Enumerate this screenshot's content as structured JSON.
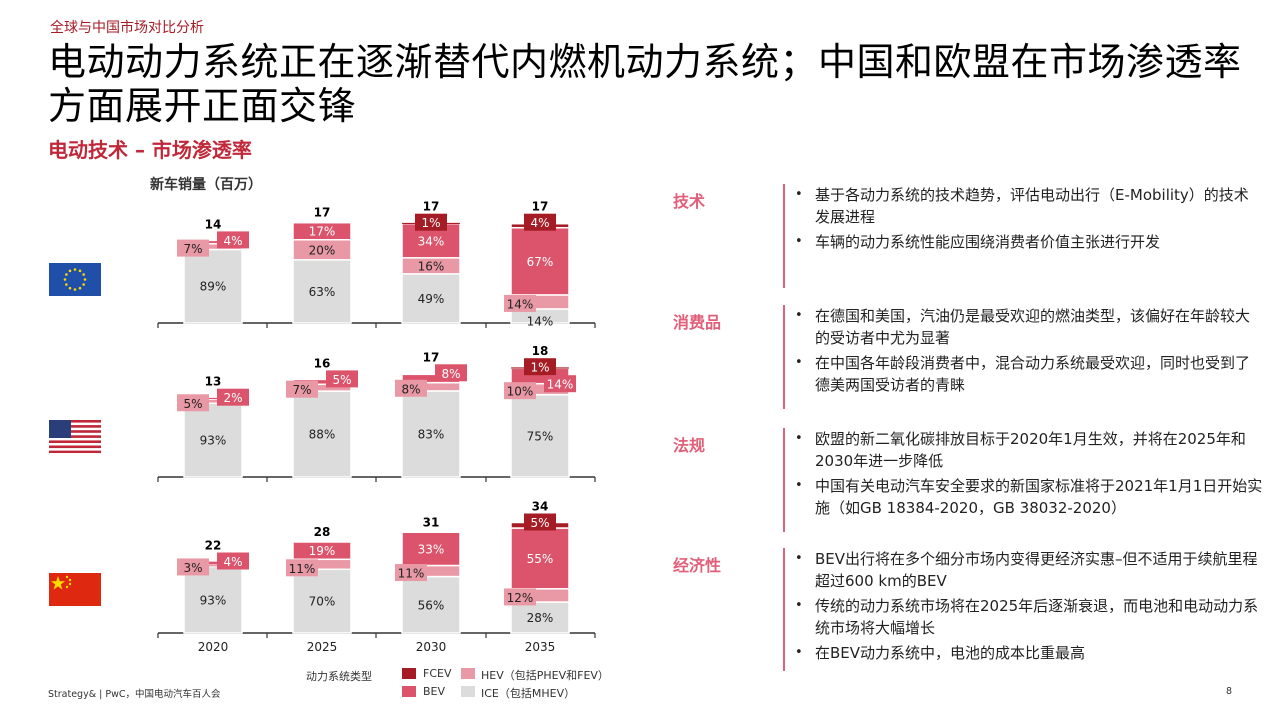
{
  "header": {
    "section": "全球与中国市场对比分析",
    "title": "电动动力系统正在逐渐替代内燃机动力系统；中国和欧盟在市场渗透率方面展开正面交锋",
    "subtitle": "电动技术 – 市场渗透率"
  },
  "chart_data": {
    "type": "stacked-bar",
    "title": "新车销量（百万）",
    "categories": [
      "2020",
      "2025",
      "2030",
      "2035"
    ],
    "series_names": [
      "ICE（包括MHEV）",
      "HEV（包括PHEV和FEV）",
      "BEV",
      "FCEV"
    ],
    "legend_title": "动力系统类型",
    "colors": {
      "FCEV": "#a51c24",
      "BEV": "#dc546c",
      "HEV": "#e899a5",
      "ICE": "#dcdcdc"
    },
    "panels": [
      {
        "region": "EU",
        "totals": [
          14,
          17,
          17,
          17
        ],
        "ICE": [
          89,
          63,
          49,
          14
        ],
        "HEV": [
          7,
          20,
          16,
          14
        ],
        "BEV": [
          4,
          17,
          34,
          67
        ],
        "FCEV": [
          0,
          0,
          1,
          4
        ]
      },
      {
        "region": "US",
        "totals": [
          13,
          16,
          17,
          18
        ],
        "ICE": [
          93,
          88,
          83,
          75
        ],
        "HEV": [
          5,
          7,
          8,
          10
        ],
        "BEV": [
          2,
          5,
          8,
          14
        ],
        "FCEV": [
          0,
          0,
          0,
          1
        ]
      },
      {
        "region": "China",
        "totals": [
          22,
          28,
          31,
          34
        ],
        "ICE": [
          93,
          70,
          56,
          28
        ],
        "HEV": [
          3,
          11,
          11,
          12
        ],
        "BEV": [
          4,
          19,
          33,
          55
        ],
        "FCEV": [
          0,
          0,
          0,
          5
        ]
      }
    ],
    "legend": {
      "FCEV": "FCEV",
      "HEV": "HEV（包括PHEV和FEV）",
      "BEV": "BEV",
      "ICE": "ICE（包括MHEV）"
    },
    "legend_placement": "bottom"
  },
  "right": [
    {
      "label": "技术",
      "items": [
        "基于各动力系统的技术趋势，评估电动出行（E-Mobility）的技术发展进程",
        "车辆的动力系统性能应围绕消费者价值主张进行开发"
      ]
    },
    {
      "label": "消费品",
      "items": [
        "在德国和美国，汽油仍是最受欢迎的燃油类型，该偏好在年龄较大的受访者中尤为显著",
        "在中国各年龄段消费者中，混合动力系统最受欢迎，同时也受到了德美两国受访者的青睐"
      ]
    },
    {
      "label": "法规",
      "items": [
        "欧盟的新二氧化碳排放目标于2020年1月生效，并将在2025年和2030年进一步降低",
        "中国有关电动汽车安全要求的新国家标准将于2021年1月1日开始实施（如GB 18384-2020，GB 38032-2020）"
      ]
    },
    {
      "label": "经济性",
      "items": [
        "BEV出行将在多个细分市场内变得更经济实惠–但不适用于续航里程超过600 km的BEV",
        "传统的动力系统市场将在2025年后逐渐衰退，而电池和电动动力系统市场将大幅增长",
        "在BEV动力系统中，电池的成本比重最高"
      ]
    }
  ],
  "footer": {
    "source": "Strategy& | PwC，中国电动汽车百人会",
    "page": "8"
  }
}
